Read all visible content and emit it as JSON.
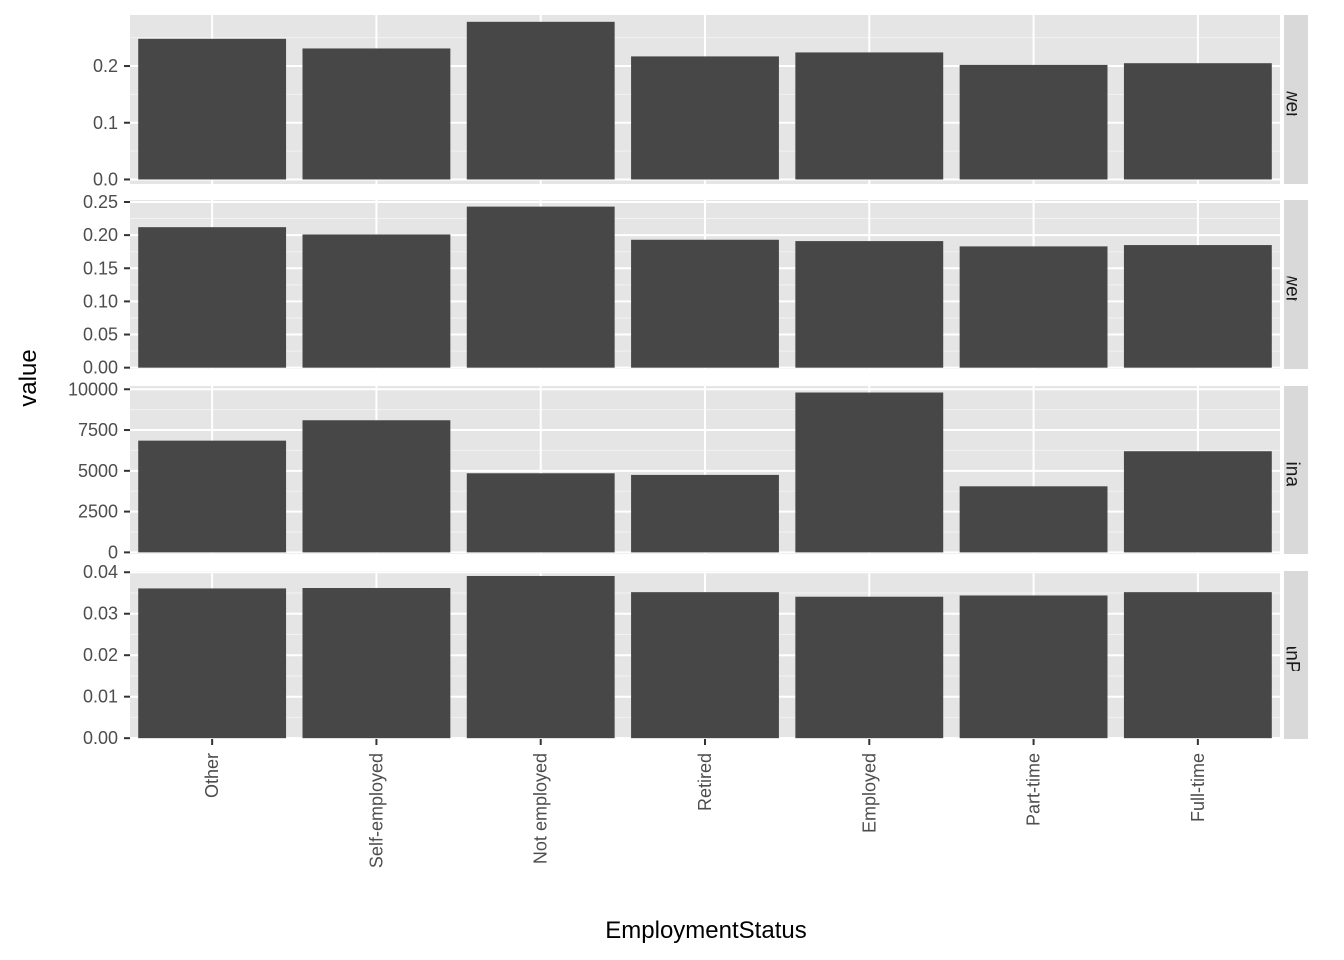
{
  "chart_data": {
    "type": "bar",
    "facet": "rows",
    "xlabel": "EmploymentStatus",
    "ylabel": "value",
    "categories": [
      "Other",
      "Self-employed",
      "Not employed",
      "Retired",
      "Employed",
      "Part-time",
      "Full-time"
    ],
    "panels": [
      {
        "strip": "BorrowerAPR",
        "ylim": [
          -0.008,
          0.29
        ],
        "ticks": [
          0.0,
          0.1,
          0.2
        ],
        "tick_labels": [
          "0.0",
          "0.1",
          "0.2"
        ],
        "values": [
          0.248,
          0.231,
          0.278,
          0.217,
          0.224,
          0.202,
          0.205
        ]
      },
      {
        "strip": "BorrowerRate",
        "ylim": [
          -0.002,
          0.253
        ],
        "ticks": [
          0.0,
          0.05,
          0.1,
          0.15,
          0.2,
          0.25
        ],
        "tick_labels": [
          "0.00",
          "0.05",
          "0.10",
          "0.15",
          "0.20",
          "0.25"
        ],
        "values": [
          0.212,
          0.201,
          0.243,
          0.193,
          0.191,
          0.183,
          0.185
        ]
      },
      {
        "strip": "LoanOriginalAmount",
        "ylim": [
          -100,
          10200
        ],
        "ticks": [
          0,
          2500,
          5000,
          7500,
          10000
        ],
        "tick_labels": [
          "0",
          "2500",
          "5000",
          "7500",
          "10000"
        ],
        "values": [
          6850,
          8100,
          4850,
          4750,
          9800,
          4050,
          6200
        ]
      },
      {
        "strip": "MonthlyLoanPercentage",
        "ylim": [
          -0.0002,
          0.0403
        ],
        "ticks": [
          0.0,
          0.01,
          0.02,
          0.03,
          0.04
        ],
        "tick_labels": [
          "0.00",
          "0.01",
          "0.02",
          "0.03",
          "0.04"
        ],
        "values": [
          0.0361,
          0.0362,
          0.0391,
          0.0352,
          0.0341,
          0.0344,
          0.0352
        ]
      }
    ],
    "grid": true,
    "colors": {
      "bar": "#474747",
      "panel": "#e5e5e5",
      "strip": "#d9d9d9",
      "grid_major": "#ffffff",
      "grid_minor": "#f2f2f2",
      "tick": "#333333"
    }
  }
}
